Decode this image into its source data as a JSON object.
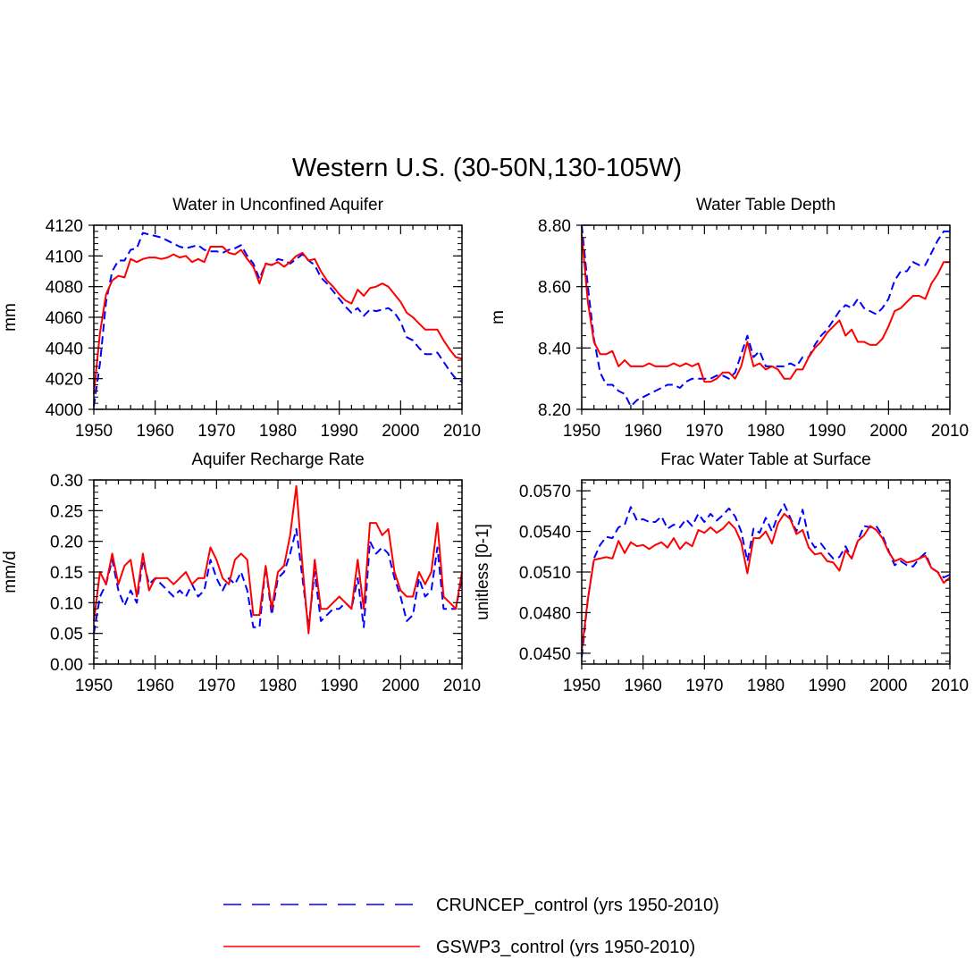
{
  "figure": {
    "title": "Western U.S. (30-50N,130-105W)"
  },
  "legend": [
    {
      "name": "CRUNCEP_control (yrs 1950-2010)",
      "color": "#0000ff",
      "style": "dashed"
    },
    {
      "name": "GSWP3_control (yrs 1950-2010)",
      "color": "#ff0000",
      "style": "solid"
    }
  ],
  "chart_data": [
    {
      "type": "line",
      "title": "Water in Unconfined Aquifer",
      "xlabel": "",
      "ylabel": "mm",
      "xlim": [
        1950,
        2010
      ],
      "ylim": [
        4000,
        4120
      ],
      "xticks": [
        "1950",
        "1960",
        "1970",
        "1980",
        "1990",
        "2000",
        "2010"
      ],
      "yticks": [
        "4000",
        "4020",
        "4040",
        "4060",
        "4080",
        "4100",
        "4120"
      ],
      "x_start": 1950,
      "series": [
        {
          "name": "CRUNCEP_control",
          "color": "#0000ff",
          "dashed": true,
          "values": [
            4002,
            4030,
            4070,
            4090,
            4097,
            4097,
            4104,
            4105,
            4115,
            4114,
            4113,
            4112,
            4110,
            4108,
            4106,
            4105,
            4106,
            4107,
            4104,
            4103,
            4103,
            4102,
            4104,
            4105,
            4107,
            4100,
            4095,
            4085,
            4095,
            4094,
            4098,
            4097,
            4095,
            4098,
            4101,
            4097,
            4094,
            4086,
            4082,
            4077,
            4072,
            4067,
            4063,
            4066,
            4061,
            4065,
            4064,
            4065,
            4066,
            4063,
            4057,
            4047,
            4045,
            4040,
            4036,
            4036,
            4037,
            4031,
            4025,
            4020,
            4018
          ]
        },
        {
          "name": "GSWP3_control",
          "color": "#ff0000",
          "dashed": false,
          "values": [
            4010,
            4050,
            4075,
            4084,
            4087,
            4086,
            4098,
            4096,
            4098,
            4099,
            4099,
            4098,
            4099,
            4101,
            4099,
            4100,
            4096,
            4098,
            4096,
            4106,
            4106,
            4106,
            4102,
            4101,
            4104,
            4098,
            4093,
            4082,
            4095,
            4094,
            4096,
            4093,
            4096,
            4100,
            4102,
            4097,
            4098,
            4090,
            4084,
            4080,
            4075,
            4071,
            4069,
            4078,
            4074,
            4079,
            4080,
            4082,
            4080,
            4075,
            4070,
            4063,
            4060,
            4056,
            4052,
            4052,
            4052,
            4045,
            4039,
            4034,
            4033
          ]
        }
      ]
    },
    {
      "type": "line",
      "title": "Water Table Depth",
      "xlabel": "",
      "ylabel": "m",
      "xlim": [
        1950,
        2010
      ],
      "ylim": [
        8.2,
        8.8
      ],
      "xticks": [
        "1950",
        "1960",
        "1970",
        "1980",
        "1990",
        "2000",
        "2010"
      ],
      "yticks": [
        "8.20",
        "8.40",
        "8.60",
        "8.80"
      ],
      "x_start": 1950,
      "series": [
        {
          "name": "CRUNCEP_control",
          "color": "#0000ff",
          "dashed": true,
          "values": [
            8.8,
            8.6,
            8.43,
            8.32,
            8.28,
            8.28,
            8.26,
            8.25,
            8.21,
            8.23,
            8.24,
            8.25,
            8.26,
            8.27,
            8.28,
            8.28,
            8.27,
            8.29,
            8.3,
            8.3,
            8.3,
            8.3,
            8.31,
            8.31,
            8.3,
            8.32,
            8.38,
            8.44,
            8.37,
            8.39,
            8.34,
            8.34,
            8.34,
            8.34,
            8.35,
            8.34,
            8.37,
            8.37,
            8.41,
            8.44,
            8.46,
            8.49,
            8.52,
            8.54,
            8.53,
            8.56,
            8.53,
            8.52,
            8.51,
            8.53,
            8.56,
            8.62,
            8.65,
            8.65,
            8.68,
            8.67,
            8.67,
            8.71,
            8.75,
            8.78,
            8.78
          ]
        },
        {
          "name": "GSWP3_control",
          "color": "#ff0000",
          "dashed": false,
          "values": [
            8.77,
            8.55,
            8.42,
            8.38,
            8.38,
            8.39,
            8.34,
            8.36,
            8.34,
            8.34,
            8.34,
            8.35,
            8.34,
            8.34,
            8.34,
            8.35,
            8.34,
            8.35,
            8.34,
            8.35,
            8.29,
            8.29,
            8.3,
            8.32,
            8.32,
            8.3,
            8.34,
            8.42,
            8.34,
            8.35,
            8.33,
            8.34,
            8.33,
            8.3,
            8.3,
            8.33,
            8.33,
            8.37,
            8.4,
            8.42,
            8.45,
            8.47,
            8.49,
            8.44,
            8.46,
            8.42,
            8.42,
            8.41,
            8.41,
            8.43,
            8.47,
            8.52,
            8.53,
            8.55,
            8.57,
            8.57,
            8.56,
            8.61,
            8.64,
            8.68,
            8.68
          ]
        }
      ]
    },
    {
      "type": "line",
      "title": "Aquifer Recharge Rate",
      "xlabel": "",
      "ylabel": "mm/d",
      "xlim": [
        1950,
        2010
      ],
      "ylim": [
        0,
        0.3
      ],
      "xticks": [
        "1950",
        "1960",
        "1970",
        "1980",
        "1990",
        "2000",
        "2010"
      ],
      "yticks": [
        "0.00",
        "0.05",
        "0.10",
        "0.15",
        "0.20",
        "0.25",
        "0.30"
      ],
      "x_start": 1950,
      "series": [
        {
          "name": "CRUNCEP_control",
          "color": "#0000ff",
          "dashed": true,
          "values": [
            0.05,
            0.11,
            0.13,
            0.17,
            0.12,
            0.095,
            0.12,
            0.1,
            0.17,
            0.13,
            0.14,
            0.13,
            0.12,
            0.11,
            0.12,
            0.11,
            0.13,
            0.11,
            0.12,
            0.17,
            0.14,
            0.12,
            0.14,
            0.13,
            0.15,
            0.12,
            0.06,
            0.06,
            0.16,
            0.08,
            0.14,
            0.15,
            0.18,
            0.22,
            0.14,
            0.06,
            0.15,
            0.07,
            0.08,
            0.09,
            0.09,
            0.1,
            0.09,
            0.14,
            0.06,
            0.2,
            0.18,
            0.19,
            0.18,
            0.14,
            0.11,
            0.07,
            0.08,
            0.14,
            0.11,
            0.12,
            0.19,
            0.09,
            0.09,
            0.09,
            0.14
          ]
        },
        {
          "name": "GSWP3_control",
          "color": "#ff0000",
          "dashed": false,
          "values": [
            0.07,
            0.15,
            0.13,
            0.18,
            0.13,
            0.16,
            0.17,
            0.11,
            0.18,
            0.12,
            0.14,
            0.14,
            0.14,
            0.13,
            0.14,
            0.15,
            0.13,
            0.14,
            0.14,
            0.19,
            0.17,
            0.14,
            0.13,
            0.17,
            0.18,
            0.17,
            0.08,
            0.08,
            0.16,
            0.09,
            0.15,
            0.16,
            0.21,
            0.29,
            0.16,
            0.05,
            0.17,
            0.09,
            0.09,
            0.1,
            0.11,
            0.1,
            0.09,
            0.17,
            0.09,
            0.23,
            0.23,
            0.21,
            0.22,
            0.15,
            0.12,
            0.11,
            0.11,
            0.15,
            0.13,
            0.15,
            0.23,
            0.11,
            0.1,
            0.09,
            0.15
          ]
        }
      ]
    },
    {
      "type": "line",
      "title": "Frac Water Table at Surface",
      "xlabel": "",
      "ylabel": "unitless [0-1]",
      "xlim": [
        1950,
        2010
      ],
      "ylim": [
        0.0442,
        0.0578
      ],
      "xticks": [
        "1950",
        "1960",
        "1970",
        "1980",
        "1990",
        "2000",
        "2010"
      ],
      "yticks": [
        "0.0450",
        "0.0480",
        "0.0510",
        "0.0540",
        "0.0570"
      ],
      "x_start": 1950,
      "series": [
        {
          "name": "CRUNCEP_control",
          "color": "#0000ff",
          "dashed": true,
          "values": [
            0.0447,
            0.049,
            0.052,
            0.053,
            0.0536,
            0.0535,
            0.0543,
            0.0545,
            0.0558,
            0.0548,
            0.0549,
            0.0547,
            0.0547,
            0.0551,
            0.0542,
            0.0545,
            0.0543,
            0.0549,
            0.0544,
            0.0553,
            0.0547,
            0.0553,
            0.0548,
            0.0552,
            0.0557,
            0.0551,
            0.054,
            0.0518,
            0.0542,
            0.0539,
            0.055,
            0.054,
            0.0552,
            0.056,
            0.055,
            0.054,
            0.0556,
            0.0535,
            0.0528,
            0.0531,
            0.0525,
            0.052,
            0.0521,
            0.0529,
            0.052,
            0.0533,
            0.0544,
            0.0543,
            0.0544,
            0.0537,
            0.0526,
            0.0515,
            0.0518,
            0.0515,
            0.0514,
            0.052,
            0.0524,
            0.0513,
            0.051,
            0.0506,
            0.0508
          ]
        },
        {
          "name": "GSWP3_control",
          "color": "#ff0000",
          "dashed": false,
          "values": [
            0.0452,
            0.049,
            0.0519,
            0.052,
            0.0521,
            0.052,
            0.0533,
            0.0524,
            0.0532,
            0.0529,
            0.053,
            0.0527,
            0.053,
            0.0532,
            0.0528,
            0.0535,
            0.0527,
            0.0532,
            0.0529,
            0.0541,
            0.0539,
            0.0543,
            0.0539,
            0.0542,
            0.0547,
            0.0542,
            0.0532,
            0.0509,
            0.0535,
            0.0535,
            0.054,
            0.0531,
            0.0546,
            0.0553,
            0.0549,
            0.0538,
            0.0541,
            0.0528,
            0.0523,
            0.0524,
            0.0518,
            0.0517,
            0.0511,
            0.0526,
            0.052,
            0.0533,
            0.0537,
            0.0544,
            0.0541,
            0.0535,
            0.0525,
            0.0518,
            0.052,
            0.0517,
            0.0518,
            0.052,
            0.0522,
            0.0513,
            0.051,
            0.0502,
            0.0506
          ]
        }
      ]
    }
  ]
}
